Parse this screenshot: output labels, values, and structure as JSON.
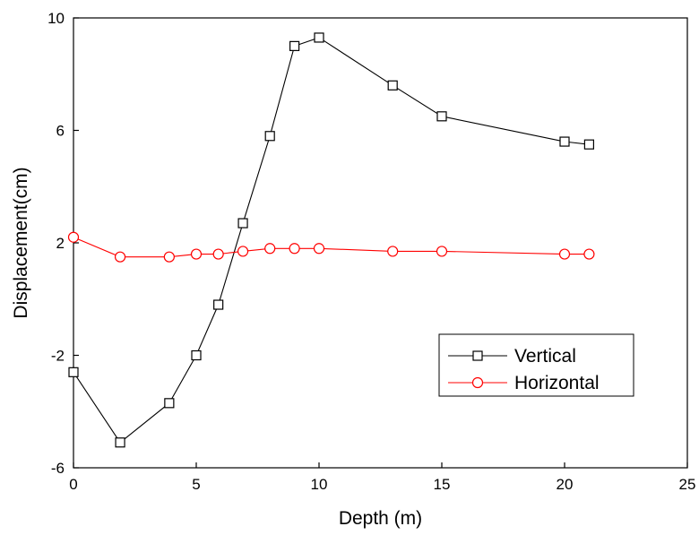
{
  "chart_data": {
    "type": "line",
    "title": "",
    "xlabel": "Depth (m)",
    "ylabel": "Displacement(cm)",
    "xlim": [
      0,
      25
    ],
    "ylim": [
      -6,
      10
    ],
    "xticks": [
      0,
      5,
      10,
      15,
      20,
      25
    ],
    "yticks": [
      -6,
      -2,
      2,
      6,
      10
    ],
    "xtick_labels": [
      "0",
      "5",
      "10",
      "15",
      "20",
      "25"
    ],
    "ytick_labels": [
      "-6",
      "-2",
      "2",
      "6",
      "10"
    ],
    "grid": false,
    "legend_position": "lower-right",
    "series": [
      {
        "name": "Vertical",
        "color": "#000000",
        "marker": "square",
        "x": [
          0,
          1.9,
          3.9,
          5,
          5.9,
          6.9,
          8,
          9,
          10,
          13,
          15,
          20,
          21
        ],
        "y": [
          -2.6,
          -5.1,
          -3.7,
          -2.0,
          -0.2,
          2.7,
          5.8,
          9.0,
          9.3,
          7.6,
          6.5,
          5.6,
          5.5
        ]
      },
      {
        "name": "Horizontal",
        "color": "#ff0000",
        "marker": "circle",
        "x": [
          0,
          1.9,
          3.9,
          5,
          5.9,
          6.9,
          8,
          9,
          10,
          13,
          15,
          20,
          21
        ],
        "y": [
          2.2,
          1.5,
          1.5,
          1.6,
          1.6,
          1.7,
          1.8,
          1.8,
          1.8,
          1.7,
          1.7,
          1.6,
          1.6
        ]
      }
    ]
  }
}
